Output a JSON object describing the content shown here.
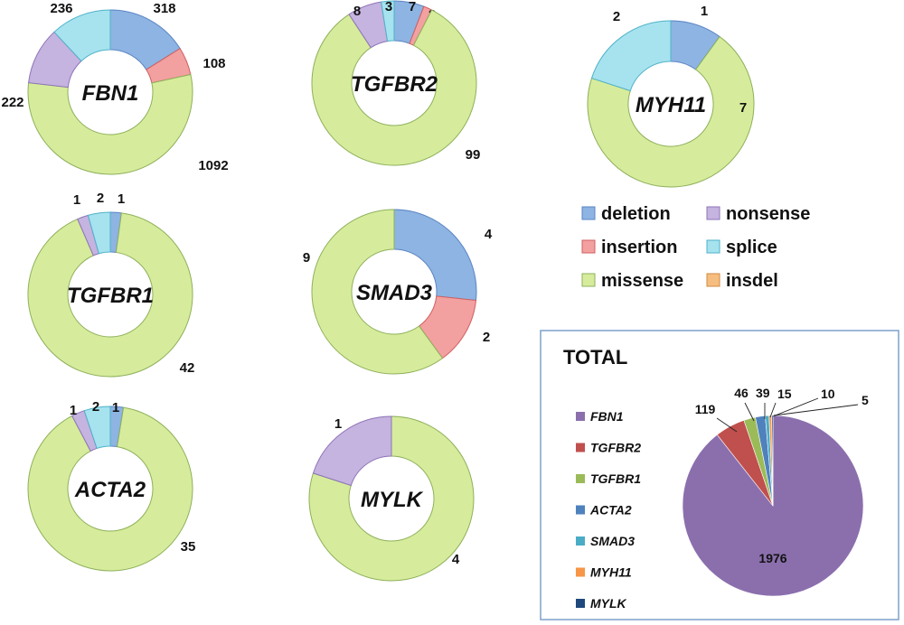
{
  "categories": [
    {
      "key": "deletion",
      "label": "deletion",
      "color": "#8db4e2",
      "stroke": "#5b84c4"
    },
    {
      "key": "insertion",
      "label": "insertion",
      "color": "#f2a0a0",
      "stroke": "#d06060"
    },
    {
      "key": "missense",
      "label": "missense",
      "color": "#d6ec9c",
      "stroke": "#8eb05a"
    },
    {
      "key": "nonsense",
      "label": "nonsense",
      "color": "#c5b3e0",
      "stroke": "#8e74b8"
    },
    {
      "key": "splice",
      "label": "splice",
      "color": "#a6e3ef",
      "stroke": "#4fb2c8"
    },
    {
      "key": "insdel",
      "label": "insdel",
      "color": "#f6bd80",
      "stroke": "#d08a40"
    }
  ],
  "chart_data": [
    {
      "type": "pie",
      "title": "FBN1",
      "series": [
        {
          "category": "deletion",
          "value": 318
        },
        {
          "category": "insertion",
          "value": 108
        },
        {
          "category": "missense",
          "value": 1092
        },
        {
          "category": "nonsense",
          "value": 222
        },
        {
          "category": "splice",
          "value": 236
        }
      ]
    },
    {
      "type": "pie",
      "title": "TGFBR2",
      "series": [
        {
          "category": "deletion",
          "value": 7
        },
        {
          "category": "insertion",
          "value": 2
        },
        {
          "category": "missense",
          "value": 99
        },
        {
          "category": "nonsense",
          "value": 8
        },
        {
          "category": "splice",
          "value": 3
        }
      ]
    },
    {
      "type": "pie",
      "title": "MYH11",
      "series": [
        {
          "category": "deletion",
          "value": 1
        },
        {
          "category": "missense",
          "value": 7
        },
        {
          "category": "splice",
          "value": 2
        }
      ]
    },
    {
      "type": "pie",
      "title": "TGFBR1",
      "series": [
        {
          "category": "deletion",
          "value": 1
        },
        {
          "category": "missense",
          "value": 42
        },
        {
          "category": "nonsense",
          "value": 1
        },
        {
          "category": "splice",
          "value": 2
        }
      ]
    },
    {
      "type": "pie",
      "title": "SMAD3",
      "series": [
        {
          "category": "deletion",
          "value": 4
        },
        {
          "category": "insertion",
          "value": 2
        },
        {
          "category": "missense",
          "value": 9
        }
      ]
    },
    {
      "type": "pie",
      "title": "ACTA2",
      "series": [
        {
          "category": "deletion",
          "value": 1
        },
        {
          "category": "missense",
          "value": 35
        },
        {
          "category": "nonsense",
          "value": 1
        },
        {
          "category": "splice",
          "value": 2
        }
      ]
    },
    {
      "type": "pie",
      "title": "MYLK",
      "series": [
        {
          "category": "missense",
          "value": 4
        },
        {
          "category": "nonsense",
          "value": 1
        }
      ]
    },
    {
      "type": "pie",
      "title": "TOTAL",
      "series": [
        {
          "name": "FBN1",
          "value": 1976,
          "color": "#8b6fad"
        },
        {
          "name": "TGFBR2",
          "value": 119,
          "color": "#c0504d"
        },
        {
          "name": "TGFBR1",
          "value": 46,
          "color": "#9bbb59"
        },
        {
          "name": "ACTA2",
          "value": 39,
          "color": "#4f81bd"
        },
        {
          "name": "SMAD3",
          "value": 15,
          "color": "#4bacc6"
        },
        {
          "name": "MYH11",
          "value": 10,
          "color": "#f79646"
        },
        {
          "name": "MYLK",
          "value": 5,
          "color": "#1f497d"
        }
      ]
    }
  ]
}
